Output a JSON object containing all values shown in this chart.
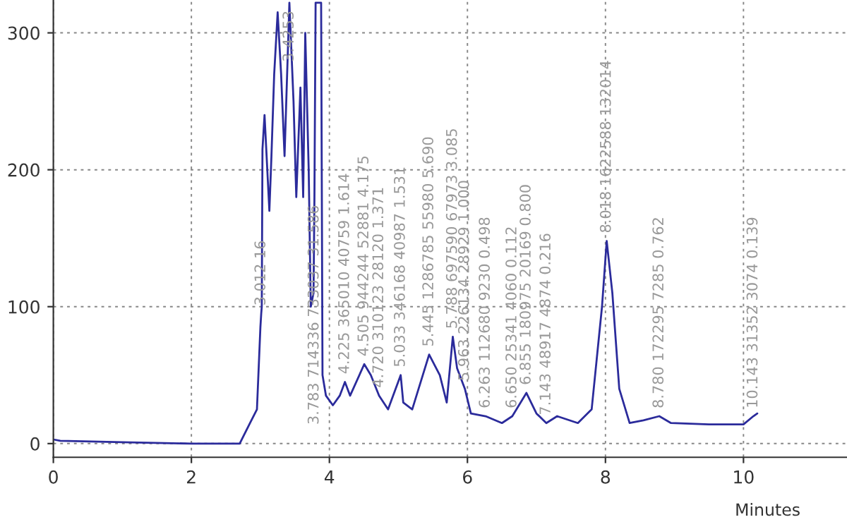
{
  "chart_data": {
    "type": "line",
    "xlabel": "Minutes",
    "xlim": [
      0,
      11.5
    ],
    "ylim": [
      -10,
      324
    ],
    "xticks": [
      0,
      2,
      4,
      6,
      8,
      10
    ],
    "yticks": [
      0,
      100,
      200,
      300
    ],
    "grid": true,
    "series": [
      {
        "color": "#2b2b9b",
        "x": [
          0,
          0.1,
          1,
          2,
          2.7,
          2.75,
          2.85,
          2.95,
          3.0,
          3.012,
          3.02,
          3.03,
          3.06,
          3.1,
          3.13,
          3.16,
          3.2,
          3.25,
          3.3,
          3.35,
          3.42,
          3.48,
          3.52,
          3.58,
          3.62,
          3.65,
          3.7,
          3.73,
          3.77,
          3.783,
          3.8,
          3.88,
          3.9,
          3.95,
          4.05,
          4.15,
          4.225,
          4.3,
          4.505,
          4.6,
          4.72,
          4.85,
          5.033,
          5.07,
          5.2,
          5.445,
          5.6,
          5.7,
          5.788,
          5.85,
          5.963,
          6.05,
          6.263,
          6.5,
          6.65,
          6.855,
          7.0,
          7.143,
          7.3,
          7.6,
          7.8,
          7.95,
          8.018,
          8.1,
          8.2,
          8.35,
          8.55,
          8.78,
          8.95,
          9.5,
          10.0,
          10.143,
          10.2
        ],
        "values": [
          3,
          2,
          1,
          0,
          0,
          5,
          15,
          25,
          85,
          95,
          100,
          215,
          240,
          200,
          170,
          210,
          270,
          315,
          270,
          210,
          322,
          250,
          180,
          260,
          180,
          300,
          200,
          100,
          110,
          180,
          322,
          322,
          50,
          35,
          28,
          35,
          45,
          35,
          58,
          50,
          35,
          25,
          50,
          30,
          25,
          65,
          50,
          30,
          78,
          55,
          40,
          22,
          20,
          15,
          20,
          37,
          22,
          15,
          20,
          15,
          25,
          100,
          148,
          110,
          40,
          15,
          17,
          20,
          15,
          14,
          14,
          20,
          22
        ]
      }
    ],
    "annotations": [
      {
        "text": "3.012 16",
        "x": 3.012,
        "y": 95
      },
      {
        "text": "3.4253",
        "x": 3.42,
        "y": 322
      },
      {
        "text": "3.783 714336 733037 31.586",
        "x": 3.783,
        "y": 180
      },
      {
        "text": "4.225 365010 40759 1.614",
        "x": 4.225,
        "y": 45
      },
      {
        "text": "4.505 944244 52881 4.175",
        "x": 4.505,
        "y": 58
      },
      {
        "text": "4.720 310123 28120 1.371",
        "x": 4.72,
        "y": 35
      },
      {
        "text": "5.033 346168 40987 1.531",
        "x": 5.033,
        "y": 50
      },
      {
        "text": "5.445 1286785 55980 5.690",
        "x": 5.445,
        "y": 65
      },
      {
        "text": "5.788 697590 67973 3.085",
        "x": 5.788,
        "y": 78
      },
      {
        "text": "5.963 226134 28929 1.000",
        "x": 5.963,
        "y": 40
      },
      {
        "text": "6.263 112680 9230 0.498",
        "x": 6.263,
        "y": 20
      },
      {
        "text": "6.650 25341 4060 0.112",
        "x": 6.65,
        "y": 20
      },
      {
        "text": "6.855 180975 20169 0.800",
        "x": 6.855,
        "y": 37
      },
      {
        "text": "7.143 48917 4874 0.216",
        "x": 7.143,
        "y": 15
      },
      {
        "text": "8.018 1622588 132014",
        "x": 8.018,
        "y": 148
      },
      {
        "text": "8.780 172295 7285 0.762",
        "x": 8.78,
        "y": 20
      },
      {
        "text": "10.143 31352 3074 0.139",
        "x": 10.143,
        "y": 20
      }
    ]
  }
}
